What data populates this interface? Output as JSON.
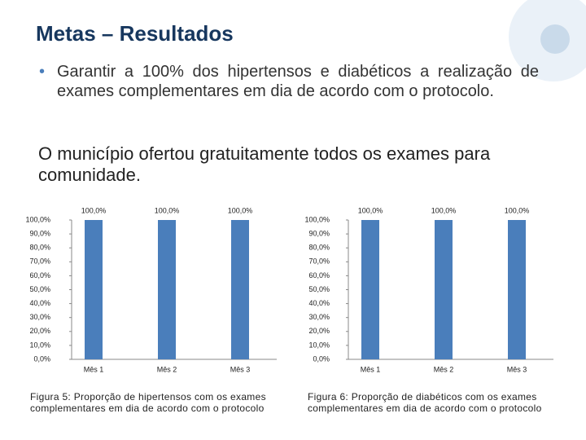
{
  "slide": {
    "title": "Metas – Resultados",
    "bullet": "Garantir a 100% dos hipertensos e diabéticos a realização de exames complementares em dia de acordo com o protocolo.",
    "statement": "O município ofertou gratuitamente todos os exames para comunidade."
  },
  "chart_data": [
    {
      "type": "bar",
      "caption": "Figura 5: Proporção de hipertensos com os exames complementares em dia de acordo com o protocolo",
      "categories": [
        "Mês 1",
        "Mês 2",
        "Mês 3"
      ],
      "values": [
        100,
        100,
        100
      ],
      "value_labels": [
        "100,0%",
        "100,0%",
        "100,0%"
      ],
      "color": "#4a7ebb",
      "ylim": [
        0,
        100
      ],
      "yticks": [
        {
          "value": 0,
          "label": "0,0%"
        },
        {
          "value": 10,
          "label": "10,0%"
        },
        {
          "value": 20,
          "label": "20,0%"
        },
        {
          "value": 30,
          "label": "30,0%"
        },
        {
          "value": 40,
          "label": "40,0%"
        },
        {
          "value": 50,
          "label": "50,0%"
        },
        {
          "value": 60,
          "label": "60,0%"
        },
        {
          "value": 70,
          "label": "70,0%"
        },
        {
          "value": 80,
          "label": "80,0%"
        },
        {
          "value": 90,
          "label": "90,0%"
        },
        {
          "value": 100,
          "label": "100,0%"
        }
      ]
    },
    {
      "type": "bar",
      "caption": "Figura 6: Proporção de diabéticos com os exames complementares em dia de acordo com o protocolo",
      "categories": [
        "Mês 1",
        "Mês 2",
        "Mês 3"
      ],
      "values": [
        100,
        100,
        100
      ],
      "value_labels": [
        "100,0%",
        "100,0%",
        "100,0%"
      ],
      "color": "#4a7ebb",
      "ylim": [
        0,
        100
      ],
      "yticks": [
        {
          "value": 0,
          "label": "0,0%"
        },
        {
          "value": 10,
          "label": "10,0%"
        },
        {
          "value": 20,
          "label": "20,0%"
        },
        {
          "value": 30,
          "label": "30,0%"
        },
        {
          "value": 40,
          "label": "40,0%"
        },
        {
          "value": 50,
          "label": "50,0%"
        },
        {
          "value": 60,
          "label": "60,0%"
        },
        {
          "value": 70,
          "label": "70,0%"
        },
        {
          "value": 80,
          "label": "80,0%"
        },
        {
          "value": 90,
          "label": "90,0%"
        },
        {
          "value": 100,
          "label": "100,0%"
        }
      ]
    }
  ]
}
